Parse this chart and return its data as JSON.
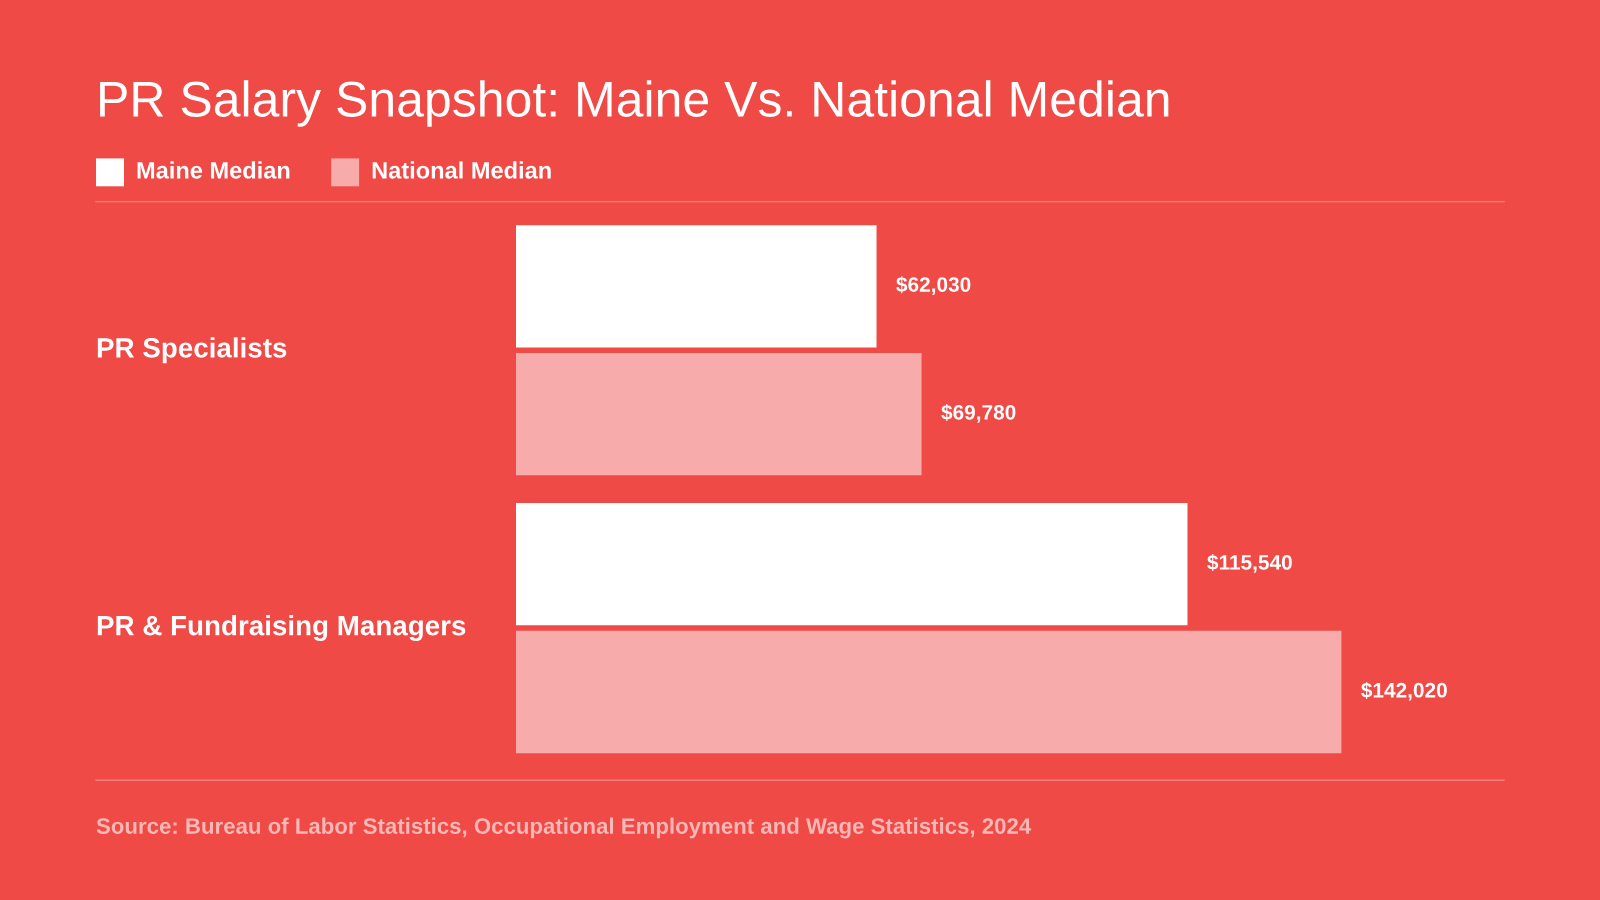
{
  "chart_data": {
    "type": "bar",
    "orientation": "horizontal",
    "title": "PR Salary Snapshot: Maine Vs. National Median",
    "categories": [
      "PR Specialists",
      "PR & Fundraising Managers"
    ],
    "series": [
      {
        "name": "Maine Median",
        "color": "#ffffff",
        "values": [
          62030,
          115540
        ],
        "value_labels": [
          "$62,030",
          "$115,540"
        ]
      },
      {
        "name": "National Median",
        "color": "#f7abaa",
        "values": [
          69780,
          142020
        ],
        "value_labels": [
          "$69,780",
          "$142,020"
        ]
      }
    ],
    "xlim": [
      0,
      170000
    ],
    "tick_labels": false,
    "legend": "top left",
    "annotations": [
      "Source: Bureau of Labor Statistics, Occupational Employment and Wage Statistics, 2024"
    ]
  }
}
